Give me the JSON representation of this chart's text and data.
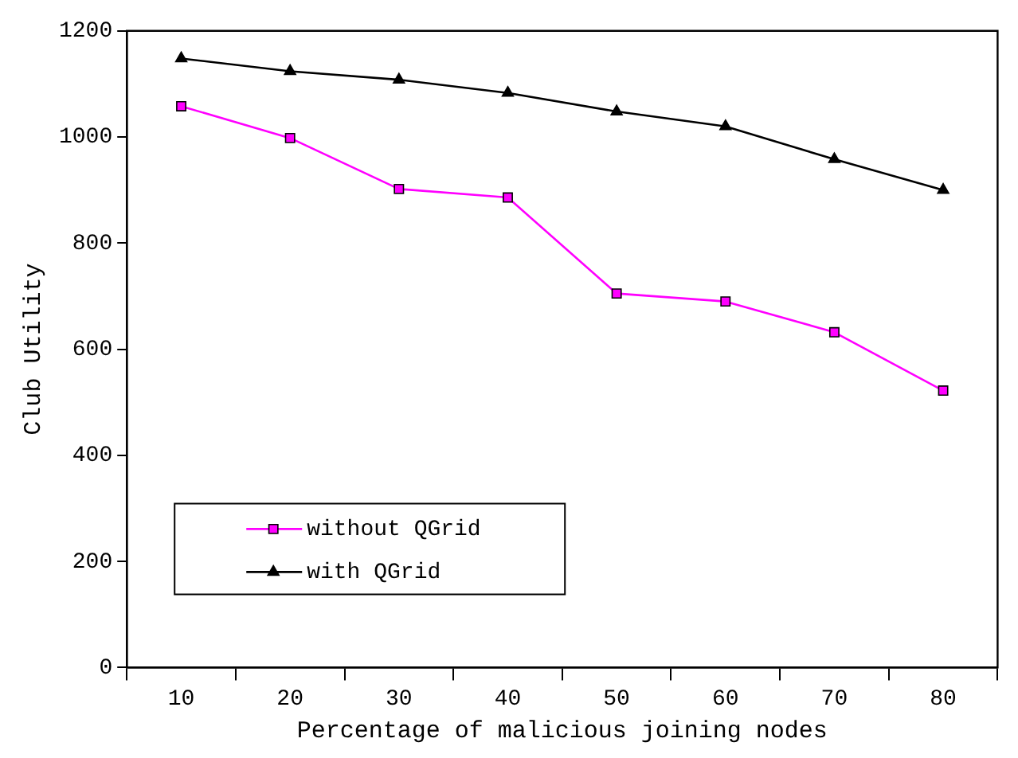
{
  "chart_data": {
    "type": "line",
    "xlabel": "Percentage of malicious joining nodes",
    "ylabel": "Club Utility",
    "categories": [
      "10",
      "20",
      "30",
      "40",
      "50",
      "60",
      "70",
      "80"
    ],
    "series": [
      {
        "name": "without QGrid",
        "color": "#ff00ff",
        "marker": "square",
        "values": [
          1058,
          998,
          902,
          886,
          705,
          690,
          632,
          522
        ]
      },
      {
        "name": "with QGrid",
        "color": "#000000",
        "marker": "triangle",
        "values": [
          1148,
          1124,
          1108,
          1083,
          1048,
          1020,
          958,
          900
        ]
      }
    ],
    "ylim": [
      0,
      1200
    ],
    "yticks": [
      0,
      200,
      400,
      600,
      800,
      1000,
      1200
    ],
    "grid": false,
    "legend": "bottom left"
  }
}
